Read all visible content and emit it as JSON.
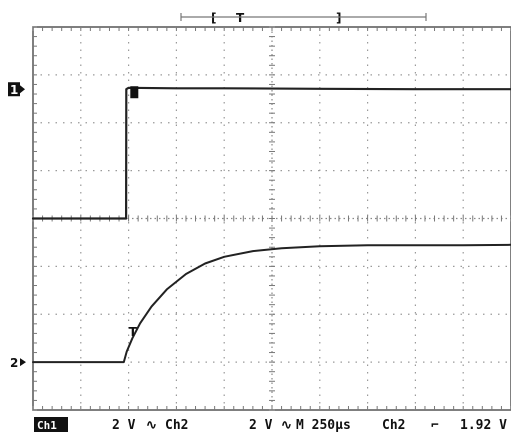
{
  "chart_data": {
    "type": "line",
    "title": "",
    "grid": true,
    "divisions": {
      "x": 10,
      "y": 8
    },
    "time_per_div_us": 250,
    "x_range_us": [
      0,
      2500
    ],
    "y_range_div": [
      -4,
      4
    ],
    "trigger_window": {
      "label": "T",
      "bracket_open": "[",
      "bracket_close": "]"
    },
    "series": [
      {
        "name": "1",
        "marker": "1",
        "volts_per_div": 2,
        "ground_level_div": 0,
        "x_us": [
          0,
          487,
          488,
          500,
          750,
          1000,
          1500,
          2000,
          2500
        ],
        "y_div": [
          0,
          0,
          2.7,
          2.73,
          2.72,
          2.72,
          2.71,
          2.7,
          2.7
        ]
      },
      {
        "name": "2",
        "marker": "2",
        "volts_per_div": 2,
        "ground_level_div": -3,
        "x_us": [
          0,
          250,
          475,
          490,
          520,
          560,
          620,
          700,
          800,
          900,
          1000,
          1150,
          1300,
          1500,
          1750,
          2000,
          2250,
          2500
        ],
        "y_div": [
          -3,
          -3,
          -3,
          -2.78,
          -2.5,
          -2.19,
          -1.84,
          -1.48,
          -1.16,
          -0.94,
          -0.8,
          -0.68,
          -0.62,
          -0.58,
          -0.56,
          -0.56,
          -0.56,
          -0.55
        ]
      }
    ],
    "status_bar": {
      "ch1_badge": "Ch1",
      "ch1_scale": "2 V",
      "ch1_coupling_glyph": "∿",
      "ch2_label": "Ch2",
      "ch2_scale": "2 V",
      "ch2_coupling_glyph": "∿",
      "timebase": "M 250μs",
      "trigger_source": "Ch2",
      "trigger_slope_glyph": "⌐",
      "trigger_level": "1.92 V"
    }
  }
}
